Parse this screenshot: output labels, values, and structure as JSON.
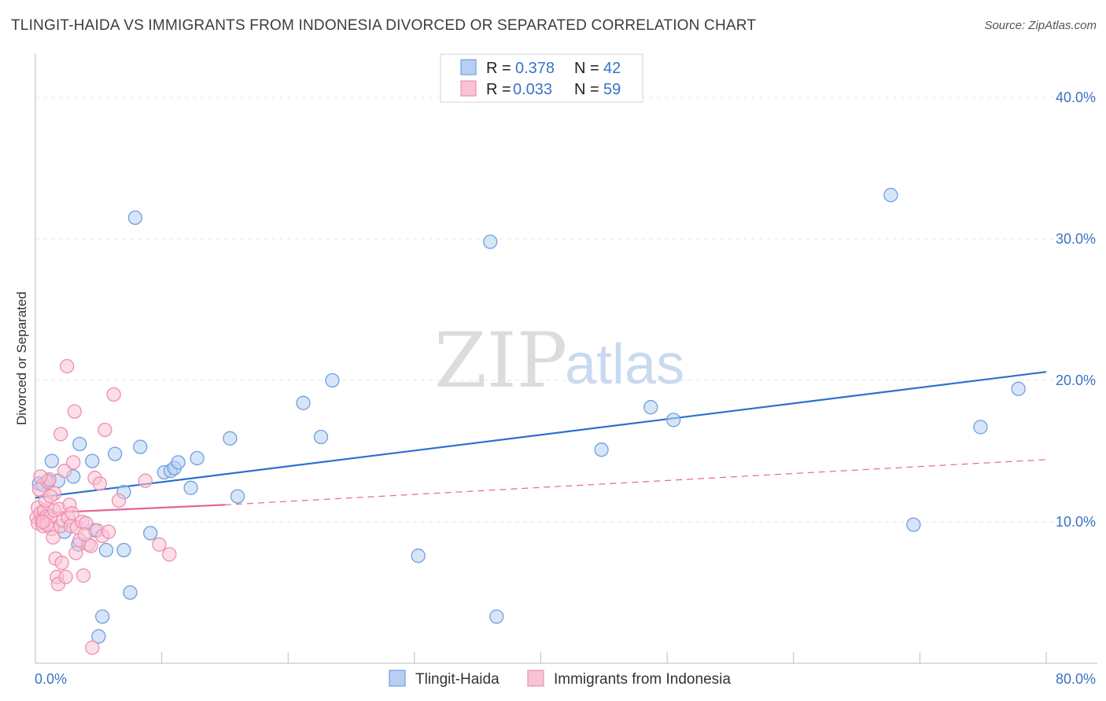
{
  "header": {
    "title": "TLINGIT-HAIDA VS IMMIGRANTS FROM INDONESIA DIVORCED OR SEPARATED CORRELATION CHART",
    "source": "Source: ZipAtlas.com"
  },
  "watermark": {
    "zip": "ZIP",
    "atlas": "atlas"
  },
  "chart_data": {
    "type": "scatter",
    "ylabel": "Divorced or Separated",
    "xlim": [
      0,
      80
    ],
    "ylim": [
      0,
      42
    ],
    "x_tick_labels": {
      "min": "0.0%",
      "max": "80.0%"
    },
    "y_ticks": [
      {
        "value": 10,
        "label": "10.0%"
      },
      {
        "value": 20,
        "label": "20.0%"
      },
      {
        "value": 30,
        "label": "30.0%"
      },
      {
        "value": 40,
        "label": "40.0%"
      }
    ],
    "legend": {
      "r_label": "R =",
      "n_label": "N =",
      "entries": [
        {
          "name": "Tlingit-Haida",
          "r": "0.378",
          "n": "42"
        },
        {
          "name": "Immigrants from Indonesia",
          "r": "0.033",
          "n": "59"
        }
      ]
    },
    "series": [
      {
        "name": "Tlingit-Haida",
        "color": "#6f9fe0",
        "fill": "#b7cff2",
        "line_color": "#2e6fd1",
        "trend": {
          "x": [
            0,
            80
          ],
          "y": [
            11.7,
            20.6
          ],
          "style": "solid"
        },
        "points": [
          [
            0.3,
            12.7
          ],
          [
            0.6,
            12.6
          ],
          [
            1.0,
            12.9
          ],
          [
            1.3,
            14.3
          ],
          [
            1.8,
            12.9
          ],
          [
            2.3,
            9.3
          ],
          [
            3.0,
            13.2
          ],
          [
            3.4,
            8.4
          ],
          [
            3.5,
            15.5
          ],
          [
            4.5,
            14.3
          ],
          [
            4.7,
            9.4
          ],
          [
            5.0,
            1.9
          ],
          [
            5.3,
            3.3
          ],
          [
            5.6,
            8.0
          ],
          [
            6.3,
            14.8
          ],
          [
            7.0,
            12.1
          ],
          [
            7.0,
            8.0
          ],
          [
            7.5,
            5.0
          ],
          [
            7.9,
            31.5
          ],
          [
            8.3,
            15.3
          ],
          [
            9.1,
            9.2
          ],
          [
            10.2,
            13.5
          ],
          [
            10.7,
            13.6
          ],
          [
            11.0,
            13.8
          ],
          [
            11.3,
            14.2
          ],
          [
            12.3,
            12.4
          ],
          [
            12.8,
            14.5
          ],
          [
            15.4,
            15.9
          ],
          [
            16.0,
            11.8
          ],
          [
            21.2,
            18.4
          ],
          [
            22.6,
            16.0
          ],
          [
            23.5,
            20.0
          ],
          [
            30.3,
            7.6
          ],
          [
            36.0,
            29.8
          ],
          [
            36.5,
            3.3
          ],
          [
            44.8,
            15.1
          ],
          [
            48.7,
            18.1
          ],
          [
            50.5,
            17.2
          ],
          [
            67.7,
            33.1
          ],
          [
            69.5,
            9.8
          ],
          [
            74.8,
            16.7
          ],
          [
            77.8,
            19.4
          ]
        ]
      },
      {
        "name": "Immigrants from Indonesia",
        "color": "#ef8fb0",
        "fill": "#f7c3d5",
        "line_color": "#e4649a",
        "trend": {
          "x": [
            0,
            15
          ],
          "y": [
            10.6,
            11.2
          ],
          "style": "solid"
        },
        "trend_ext": {
          "x": [
            15,
            80
          ],
          "y": [
            11.2,
            14.4
          ],
          "style": "dashed"
        },
        "points": [
          [
            0.1,
            10.3
          ],
          [
            0.2,
            11.0
          ],
          [
            0.2,
            9.9
          ],
          [
            0.3,
            12.3
          ],
          [
            0.4,
            10.6
          ],
          [
            0.5,
            10.1
          ],
          [
            0.6,
            9.7
          ],
          [
            0.7,
            10.8
          ],
          [
            0.8,
            11.5
          ],
          [
            0.9,
            10.4
          ],
          [
            1.0,
            12.8
          ],
          [
            1.1,
            13.0
          ],
          [
            1.2,
            10.4
          ],
          [
            1.3,
            9.5
          ],
          [
            1.4,
            8.9
          ],
          [
            1.5,
            10.8
          ],
          [
            1.6,
            7.4
          ],
          [
            1.7,
            6.1
          ],
          [
            1.8,
            5.6
          ],
          [
            1.9,
            10.9
          ],
          [
            2.0,
            9.7
          ],
          [
            2.1,
            7.1
          ],
          [
            2.2,
            10.1
          ],
          [
            2.3,
            13.6
          ],
          [
            2.4,
            6.1
          ],
          [
            2.5,
            21.0
          ],
          [
            2.6,
            10.3
          ],
          [
            2.7,
            11.2
          ],
          [
            2.8,
            9.7
          ],
          [
            3.0,
            14.2
          ],
          [
            3.1,
            17.8
          ],
          [
            3.2,
            7.8
          ],
          [
            3.3,
            9.6
          ],
          [
            3.5,
            8.7
          ],
          [
            3.7,
            10.0
          ],
          [
            3.8,
            6.2
          ],
          [
            4.0,
            9.9
          ],
          [
            4.2,
            8.4
          ],
          [
            4.5,
            1.1
          ],
          [
            4.7,
            13.1
          ],
          [
            4.9,
            9.4
          ],
          [
            5.1,
            12.7
          ],
          [
            5.3,
            9.0
          ],
          [
            5.5,
            16.5
          ],
          [
            5.8,
            9.3
          ],
          [
            6.2,
            19.0
          ],
          [
            6.6,
            11.5
          ],
          [
            8.7,
            12.9
          ],
          [
            9.8,
            8.4
          ],
          [
            10.6,
            7.7
          ],
          [
            0.4,
            13.2
          ],
          [
            0.9,
            9.8
          ],
          [
            1.5,
            12.0
          ],
          [
            2.0,
            16.2
          ],
          [
            3.9,
            9.1
          ],
          [
            4.4,
            8.3
          ],
          [
            2.9,
            10.6
          ],
          [
            1.2,
            11.8
          ],
          [
            0.6,
            10.0
          ]
        ]
      }
    ]
  }
}
